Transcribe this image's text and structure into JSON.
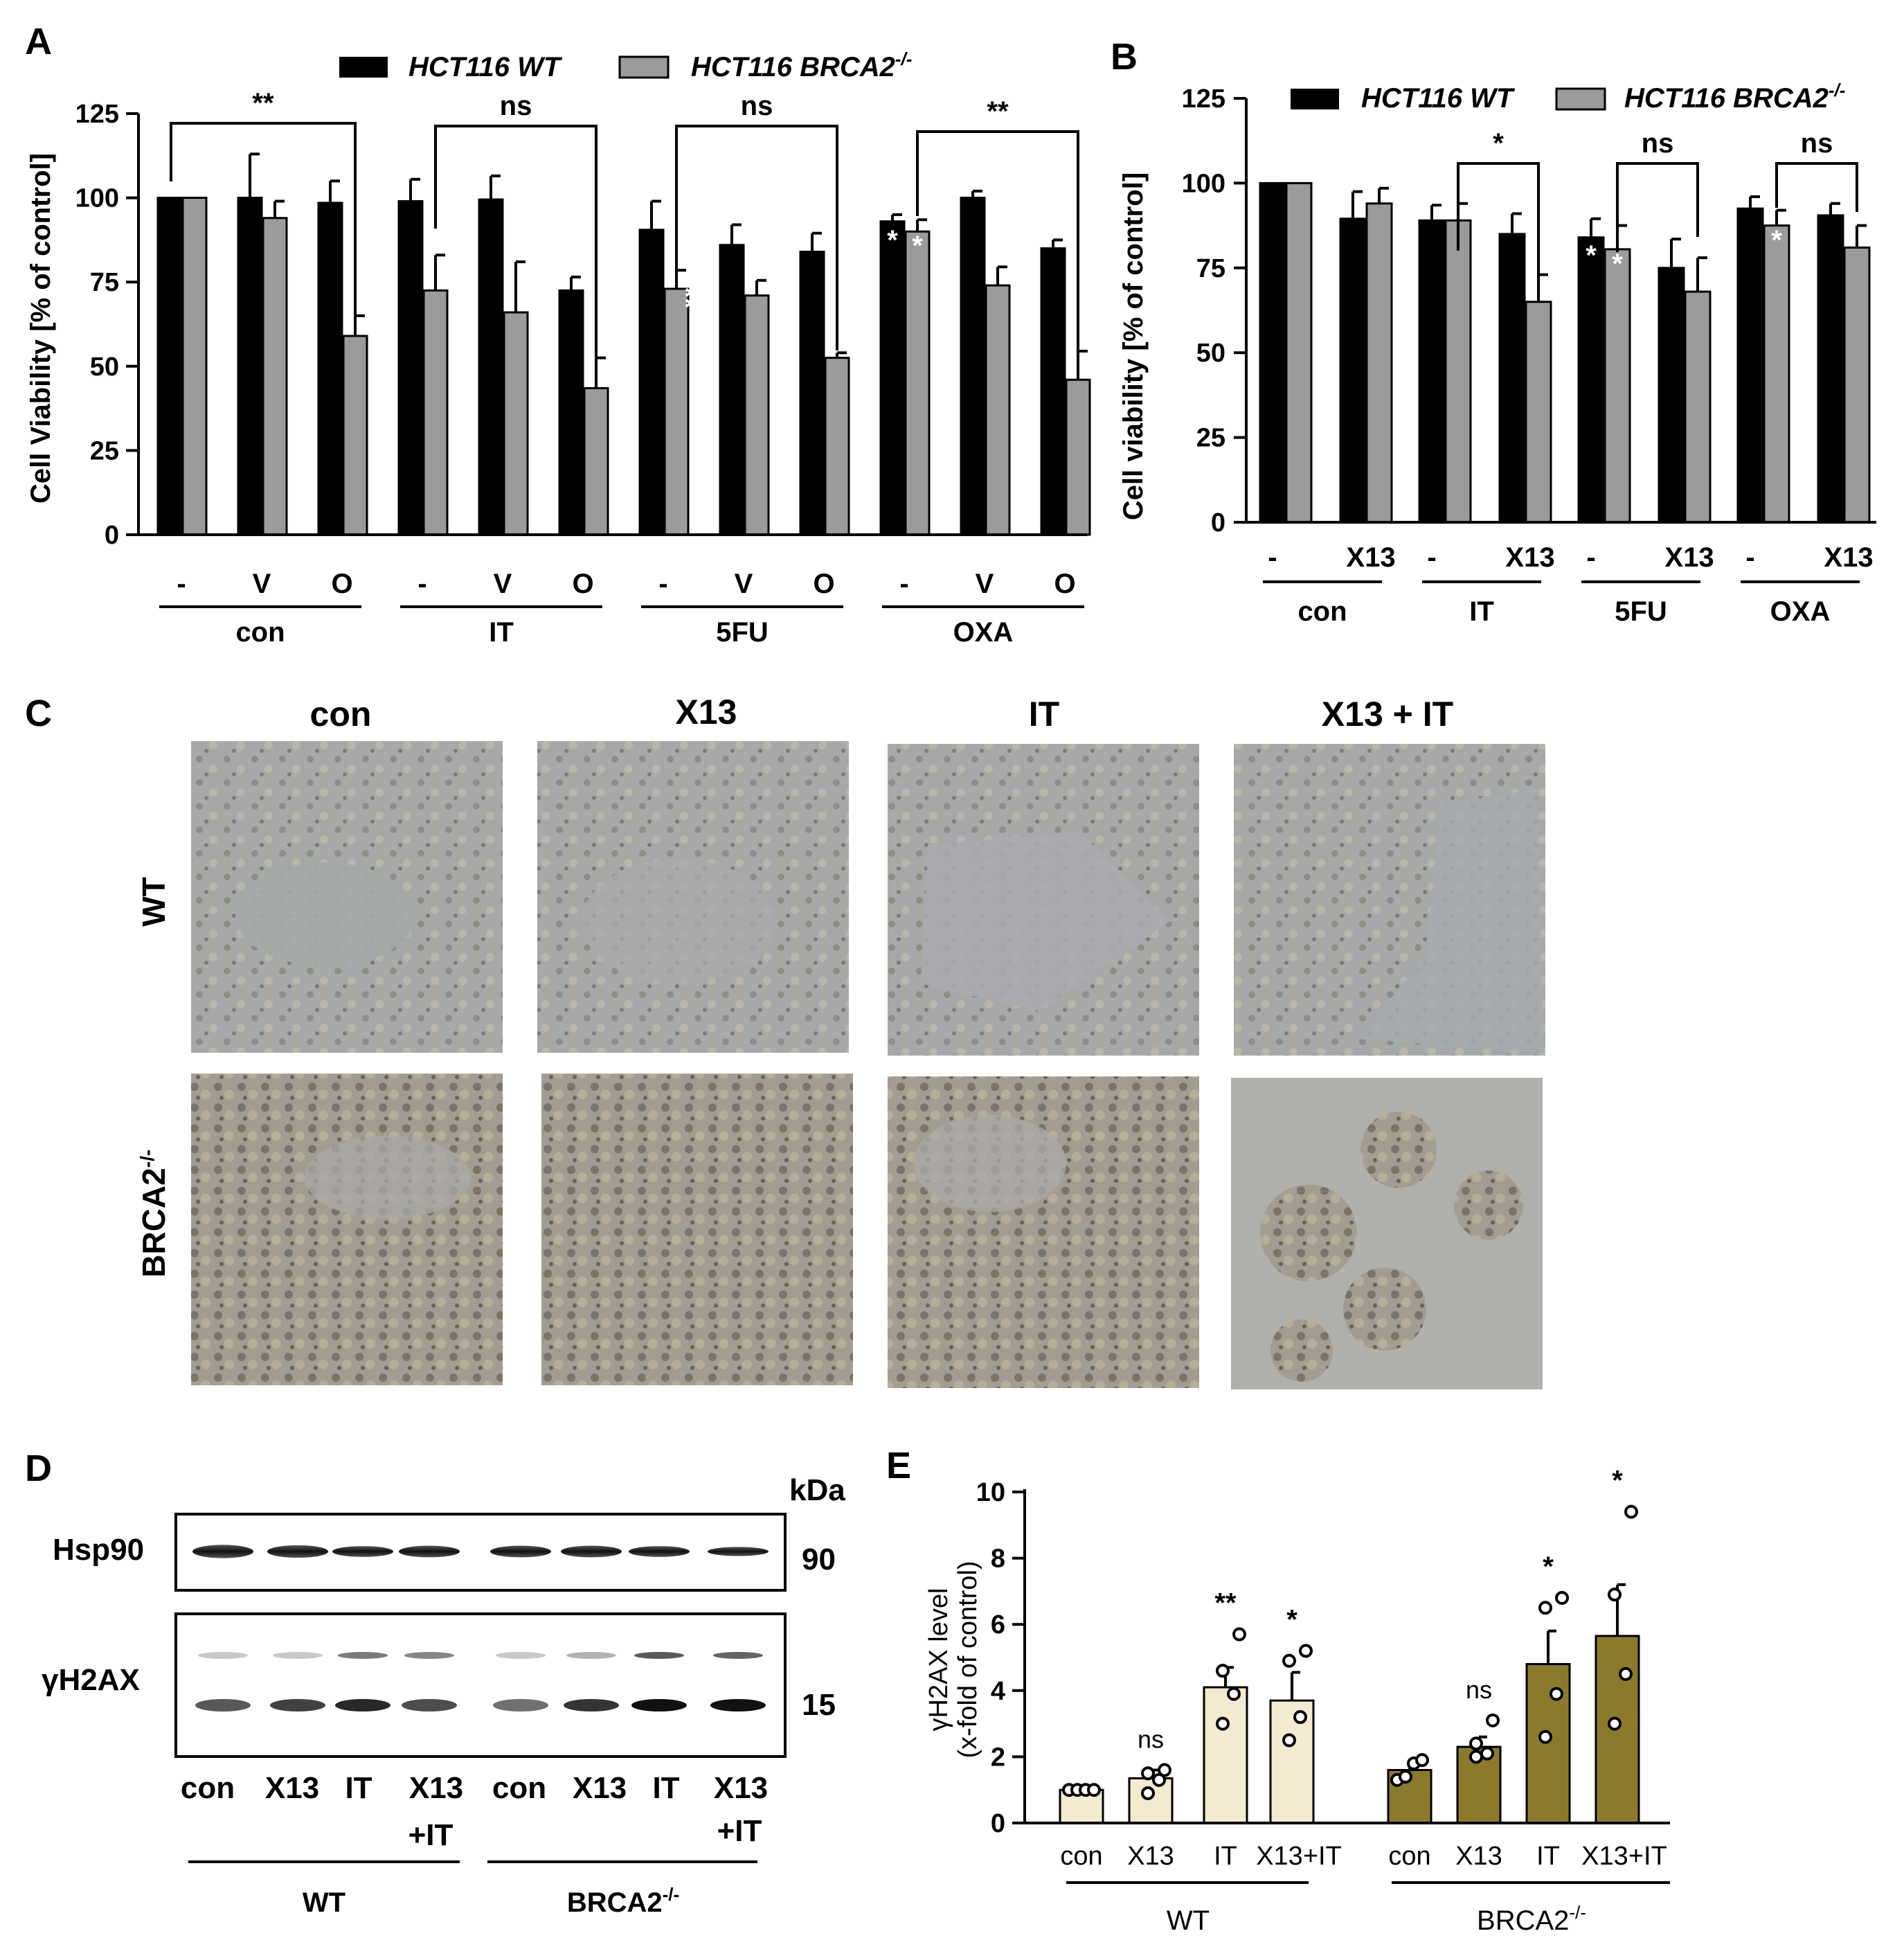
{
  "panels": {
    "A": "A",
    "B": "B",
    "C": "C",
    "D": "D",
    "E": "E"
  },
  "colors": {
    "wt": "#000000",
    "brca2": "#9b9b9b",
    "wt_e": "#f2ebcf",
    "brca2_e": "#8c7a2c"
  },
  "legend": {
    "wt": "HCT116 WT",
    "brca2_base": "HCT116 BRCA2",
    "brca2_sup": "-/-"
  },
  "panel_a": {
    "ylabel": "Cell Viability [% of control]",
    "yticks": [
      "0",
      "25",
      "50",
      "75",
      "100",
      "125"
    ],
    "groups": [
      "con",
      "IT",
      "5FU",
      "OXA"
    ],
    "sub_labels": [
      "-",
      "V",
      "O"
    ],
    "comparisons": [
      "**",
      "ns",
      "ns",
      "**"
    ],
    "in_bar_marks": [
      "**",
      "*",
      "*"
    ]
  },
  "panel_b": {
    "ylabel": "Cell viability [% of control]",
    "yticks": [
      "0",
      "25",
      "50",
      "75",
      "100",
      "125"
    ],
    "groups": [
      "con",
      "IT",
      "5FU",
      "OXA"
    ],
    "sub_labels": [
      "-",
      "X13"
    ],
    "comparisons": [
      "*",
      "ns",
      "ns"
    ],
    "in_bar_marks": [
      "*",
      "*",
      "*"
    ]
  },
  "panel_c": {
    "columns": [
      "con",
      "X13",
      "IT",
      "X13 + IT"
    ],
    "rows": {
      "wt": "WT",
      "brca2_base": "BRCA2",
      "brca2_sup": "-/-"
    }
  },
  "panel_d": {
    "kda": "kDa",
    "proteins": [
      "Hsp90",
      "γH2AX"
    ],
    "mw": [
      "90",
      "15"
    ],
    "lanes": [
      "con",
      "X13",
      "IT",
      "X13",
      "con",
      "X13",
      "IT",
      "X13"
    ],
    "lanes_line2": [
      "+IT",
      "+IT"
    ],
    "groups": {
      "wt": "WT",
      "brca2_base": "BRCA2",
      "brca2_sup": "-/-"
    }
  },
  "panel_e": {
    "ylabel1": "γH2AX level",
    "ylabel2": "(x-fold of control)",
    "yticks": [
      "0",
      "2",
      "4",
      "6",
      "8",
      "10"
    ],
    "categories": [
      "con",
      "X13",
      "IT",
      "X13+IT",
      "con",
      "X13",
      "IT",
      "X13+IT"
    ],
    "groups": {
      "wt": "WT",
      "brca2_base": "BRCA2",
      "brca2_sup": "-/-"
    },
    "sig": [
      "",
      "ns",
      "**",
      "*",
      "",
      "ns",
      "*",
      "*"
    ]
  },
  "chart_data": [
    {
      "type": "bar",
      "panel": "A",
      "ylabel": "Cell Viability [% of control]",
      "ylim": [
        0,
        125
      ],
      "group_labels": [
        "con",
        "IT",
        "5FU",
        "OXA"
      ],
      "categories": [
        "-",
        "V",
        "O",
        "-",
        "V",
        "O",
        "-",
        "V",
        "O",
        "-",
        "V",
        "O"
      ],
      "series": [
        {
          "name": "HCT116 WT",
          "values": [
            100,
            100,
            98.5,
            99,
            99.5,
            72.5,
            90.5,
            86,
            84,
            93,
            100,
            85
          ],
          "errors": [
            0,
            13,
            6.5,
            6.5,
            7,
            4,
            8.5,
            6,
            5.5,
            2,
            2,
            2.5
          ]
        },
        {
          "name": "HCT116 BRCA2-/-",
          "values": [
            100,
            94,
            59,
            72.5,
            66,
            43.5,
            73,
            71,
            52.5,
            90,
            74,
            46
          ],
          "errors": [
            0,
            5,
            6,
            10.5,
            15,
            9,
            5.5,
            4.5,
            1.5,
            3.5,
            5.5,
            8.5
          ]
        }
      ]
    },
    {
      "type": "bar",
      "panel": "B",
      "ylabel": "Cell viability [% of control]",
      "ylim": [
        0,
        125
      ],
      "group_labels": [
        "con",
        "IT",
        "5FU",
        "OXA"
      ],
      "categories": [
        "-",
        "X13",
        "-",
        "X13",
        "-",
        "X13",
        "-",
        "X13"
      ],
      "series": [
        {
          "name": "HCT116 WT",
          "values": [
            100,
            89.5,
            89,
            85,
            84,
            75,
            92.5,
            90.5
          ],
          "errors": [
            0,
            8,
            4.5,
            6,
            5.5,
            8.5,
            3.5,
            3.5
          ]
        },
        {
          "name": "HCT116 BRCA2-/-",
          "values": [
            100,
            94,
            89,
            65,
            80.5,
            68,
            87.5,
            81
          ],
          "errors": [
            0,
            4.5,
            5,
            8,
            7,
            10,
            4.5,
            6.5
          ]
        }
      ]
    },
    {
      "type": "bar",
      "panel": "E",
      "ylabel": "γH2AX level (x-fold of control)",
      "ylim": [
        0,
        10
      ],
      "group_labels": [
        "WT",
        "BRCA2-/-"
      ],
      "categories": [
        "con",
        "X13",
        "IT",
        "X13+IT",
        "con",
        "X13",
        "IT",
        "X13+IT"
      ],
      "values": [
        1.0,
        1.35,
        4.1,
        3.7,
        1.6,
        2.3,
        4.8,
        5.65
      ],
      "errors": [
        0.05,
        0.25,
        0.6,
        0.85,
        0.15,
        0.3,
        1.0,
        1.55
      ],
      "points": [
        [
          1,
          1,
          1,
          1
        ],
        [
          0.9,
          1.3,
          1.5,
          1.6
        ],
        [
          3.0,
          3.9,
          4.6,
          5.7
        ],
        [
          2.5,
          3.2,
          4.9,
          5.2
        ],
        [
          1.3,
          1.4,
          1.8,
          1.9
        ],
        [
          2.0,
          2.1,
          2.4,
          3.1
        ],
        [
          2.6,
          3.9,
          6.5,
          6.8
        ],
        [
          3.0,
          4.5,
          6.9,
          9.4
        ]
      ]
    }
  ]
}
